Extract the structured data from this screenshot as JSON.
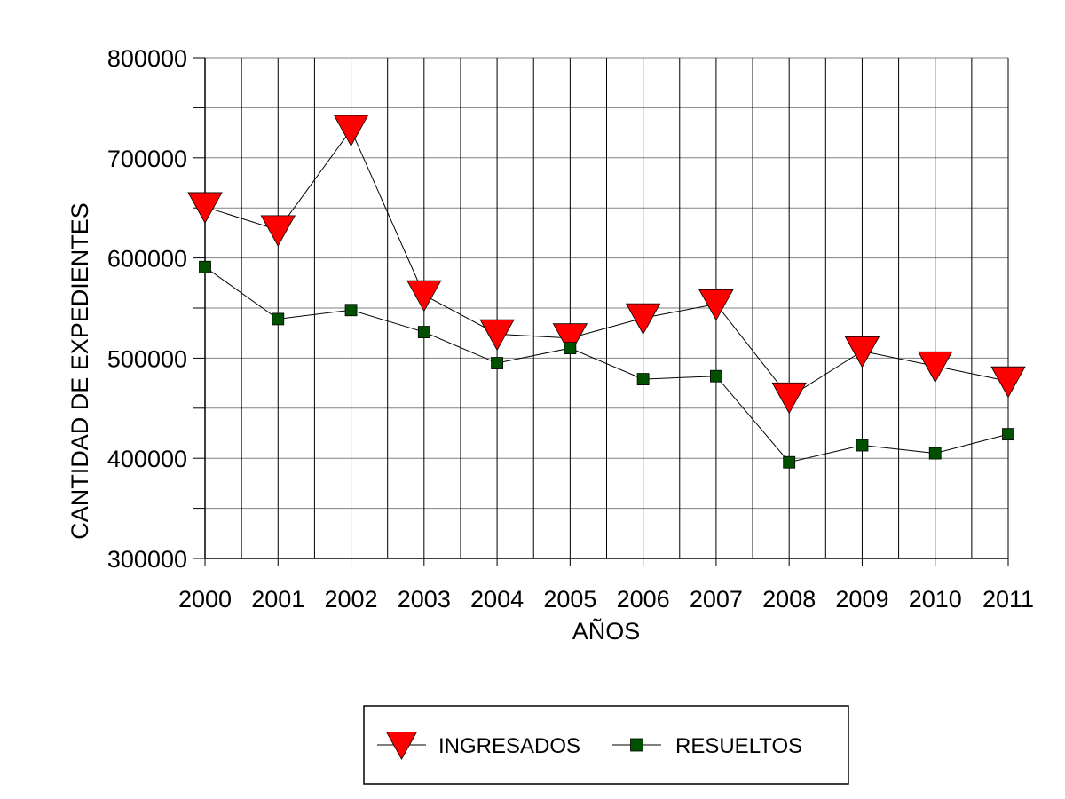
{
  "chart_data": {
    "type": "line",
    "title": "",
    "xlabel": "AÑOS",
    "ylabel": "CANTIDAD DE EXPEDIENTES",
    "x": [
      "2000",
      "2001",
      "2002",
      "2003",
      "2004",
      "2005",
      "2006",
      "2007",
      "2008",
      "2009",
      "2010",
      "2011"
    ],
    "ylim": [
      300000,
      800000
    ],
    "yticks": [
      "300000",
      "400000",
      "500000",
      "600000",
      "700000",
      "800000"
    ],
    "grid": true,
    "legend_position": "bottom",
    "series": [
      {
        "name": "INGRESADOS",
        "marker": "triangle-down",
        "color": "#ff0000",
        "values": [
          651000,
          628000,
          728000,
          563000,
          524000,
          520000,
          540000,
          554000,
          461000,
          507000,
          492000,
          477000
        ]
      },
      {
        "name": "RESUELTOS",
        "marker": "square",
        "color": "#005000",
        "values": [
          591000,
          539000,
          548000,
          526000,
          495000,
          510000,
          479000,
          482000,
          396000,
          413000,
          405000,
          424000
        ]
      }
    ]
  }
}
